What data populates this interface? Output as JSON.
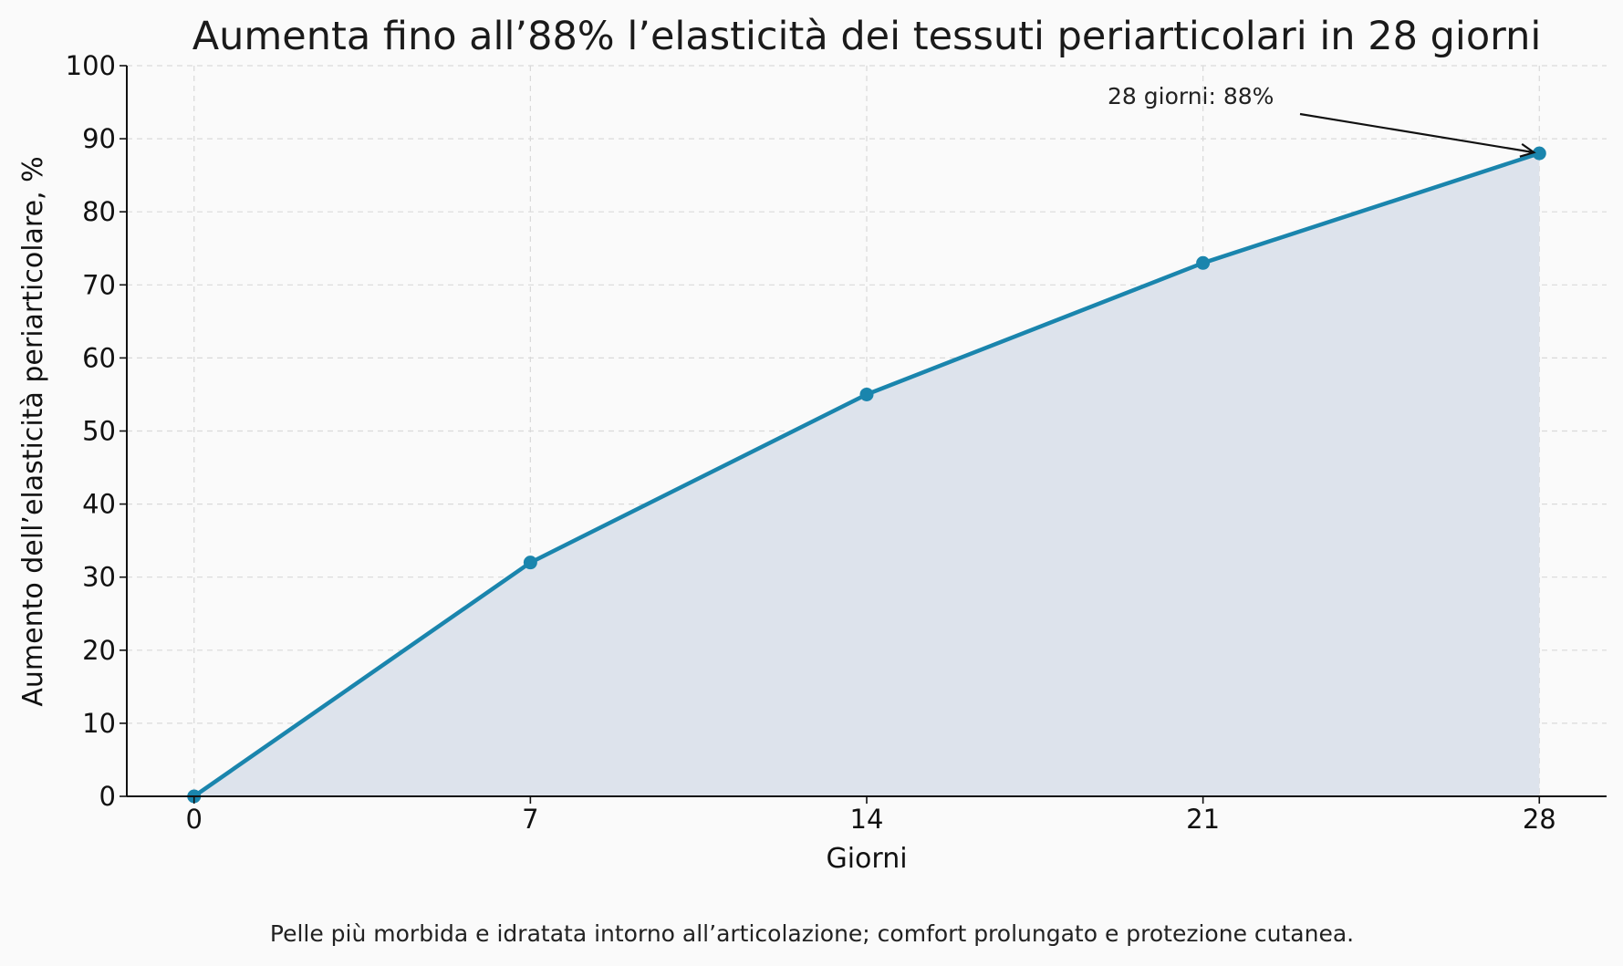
{
  "chart_data": {
    "type": "area",
    "title": "Aumenta fino all’88% l’elasticità dei tessuti periarticolari in 28 giorni",
    "xlabel": "Giorni",
    "ylabel": "Aumento dell’elasticità periarticolare, %",
    "x": [
      0,
      7,
      14,
      21,
      28
    ],
    "y": [
      0,
      32,
      55,
      73,
      88
    ],
    "xlim": [
      -1.4,
      29.4
    ],
    "ylim": [
      0,
      100
    ],
    "xticks": [
      0,
      7,
      14,
      21,
      28
    ],
    "yticks": [
      0,
      10,
      20,
      30,
      40,
      50,
      60,
      70,
      80,
      90,
      100
    ],
    "grid": true,
    "line_color": "#1a85ad",
    "fill_color": "#dde3ec",
    "annotation": {
      "text": "28 giorni: 88%",
      "x": 28,
      "y": 88
    },
    "caption": "Pelle più morbida e idratata intorno all’articolazione; comfort prolungato e protezione cutanea."
  }
}
